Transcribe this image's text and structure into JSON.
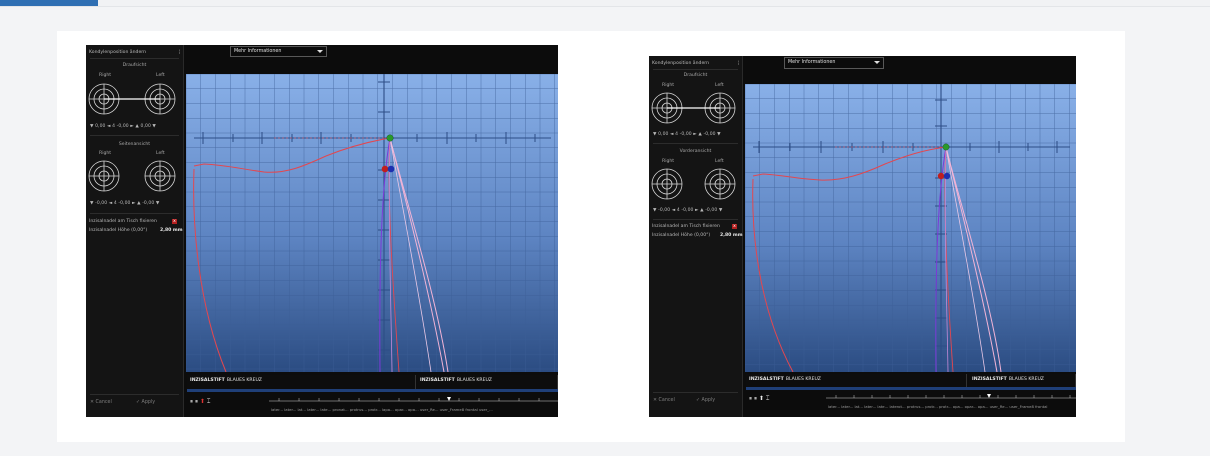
{
  "colors": {
    "accent": "#2f6fb3",
    "plot_top": "#87aee6",
    "plot_bottom": "#2b4d84",
    "curve_red": "#e3474f",
    "curve_pink": "#f2b4d6",
    "curve_purple": "#7c3ad8",
    "point_green": "#2a9a2a",
    "point_red": "#c01e1e",
    "point_blue": "#1d2fb0"
  },
  "shot_a": {
    "panel_title": "Kondylenposition ändern",
    "close_glyph": "¦",
    "top_view": "Draufsicht",
    "right": "Right",
    "left": "Left",
    "top_values": "▼ 0,00 ◄ 4 -0,00 ► ▲ 0,00 ▼",
    "front_view": "Seitenansicht",
    "front_values": "▼ -0,00 ◄ 4 -0,00 ► ▲ -0,00 ▼",
    "incisal_table": "Inzisalnadel am Tisch fixieren",
    "incisal_height": "Inzisalnadel Höhe (0,00°)",
    "incisal_value": "2,80  mm",
    "cancel": "Cancel",
    "apply": "Apply",
    "dropdown": "Mehr Informationen",
    "tag_bold": "INZISALSTIFT",
    "tag_rest": "BLAUES KREUZ",
    "controls": "⏸ ⏸ ⬆ ⌶",
    "timeline_labels": "later... later... lat... later... late... pronat... protrus... protr... lapa... opar... opa... user_Re... user_Frame8 frontal  user_..."
  },
  "shot_b": {
    "panel_title": "Kondylenposition ändern",
    "close_glyph": "¦",
    "top_view": "Draufsicht",
    "right": "Right",
    "left": "Left",
    "top_values": "▼ 0,00 ◄ 4 -0,00 ► ▲ -0,00 ▼",
    "front_view": "Vorderansicht",
    "front_values": "▼ -0,00 ◄ 4 -0,00 ► ▲ -0,00 ▼",
    "incisal_table": "Inzisalnadel am Tisch fixieren",
    "incisal_height": "Inzisalnadel Höhe (0,00°)",
    "incisal_value": "2,80  mm",
    "cancel": "Cancel",
    "apply": "Apply",
    "dropdown": "Mehr Informationen",
    "tag_bold": "INZISALSTIFT",
    "tag_rest": "BLAUES KREUZ",
    "controls": "⏸ ⏸ ⬆ ⌶",
    "timeline_labels": "later... later... lat... later... late... laterot... protrus... protr... protr... opa... opar... opa... user_Re... user_Frame8 frontal"
  }
}
